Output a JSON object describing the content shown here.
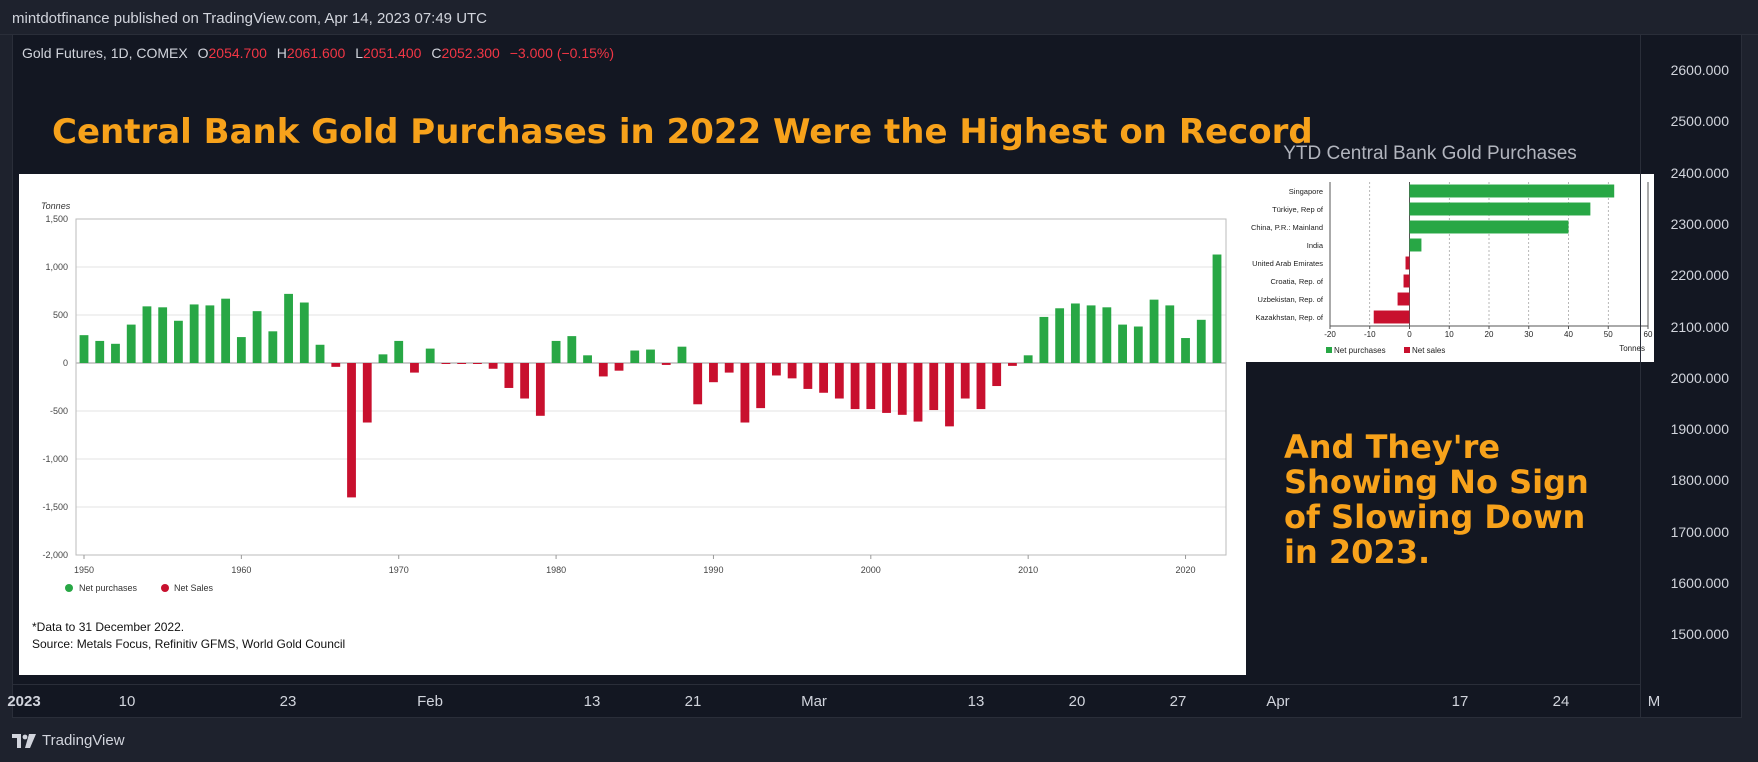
{
  "header": {
    "publisher": "mintdotfinance published on TradingView.com, Apr 14, 2023 07:49 UTC"
  },
  "legend": {
    "symbol": "Gold Futures, 1D, COMEX",
    "open_label": "O",
    "open": "2054.700",
    "high_label": "H",
    "high": "2061.600",
    "low_label": "L",
    "low": "2051.400",
    "close_label": "C",
    "close": "2052.300",
    "change": "−3.000 (−0.15%)"
  },
  "headline": "Central Bank Gold Purchases in 2022 Were the Highest on Record",
  "side_text": "And They're Showing No Sign of Slowing Down in 2023.",
  "price_scale": [
    "2600.000",
    "2500.000",
    "2400.000",
    "2300.000",
    "2200.000",
    "2100.000",
    "2000.000",
    "1900.000",
    "1800.000",
    "1700.000",
    "1600.000",
    "1500.000"
  ],
  "time_axis": [
    "2023",
    "10",
    "23",
    "Feb",
    "13",
    "21",
    "Mar",
    "13",
    "20",
    "27",
    "Apr",
    "17",
    "24",
    "M"
  ],
  "footer": {
    "brand": "TradingView"
  },
  "colors": {
    "positive": "#28a745",
    "negative": "#c8102e",
    "headline": "#f7a21b",
    "red_values": "#f23645"
  },
  "chart_data": [
    {
      "type": "bar",
      "title": "",
      "ylabel": "Tonnes",
      "ylim": [
        -2000,
        1500
      ],
      "yticks": [
        "1,500",
        "1,000",
        "500",
        "0",
        "-500",
        "-1,000",
        "-1,500",
        "-2,000"
      ],
      "xticks": [
        "1950",
        "1960",
        "1970",
        "1980",
        "1990",
        "2000",
        "2010",
        "2020"
      ],
      "x": [
        1950,
        1951,
        1952,
        1953,
        1954,
        1955,
        1956,
        1957,
        1958,
        1959,
        1960,
        1961,
        1962,
        1963,
        1964,
        1965,
        1966,
        1967,
        1968,
        1969,
        1970,
        1971,
        1972,
        1973,
        1974,
        1975,
        1976,
        1977,
        1978,
        1979,
        1980,
        1981,
        1982,
        1983,
        1984,
        1985,
        1986,
        1987,
        1988,
        1989,
        1990,
        1991,
        1992,
        1993,
        1994,
        1995,
        1996,
        1997,
        1998,
        1999,
        2000,
        2001,
        2002,
        2003,
        2004,
        2005,
        2006,
        2007,
        2008,
        2009,
        2010,
        2011,
        2012,
        2013,
        2014,
        2015,
        2016,
        2017,
        2018,
        2019,
        2020,
        2021,
        2022
      ],
      "values": [
        290,
        230,
        200,
        400,
        590,
        580,
        440,
        610,
        600,
        670,
        270,
        540,
        330,
        720,
        630,
        190,
        -40,
        -1400,
        -620,
        90,
        230,
        -100,
        150,
        -10,
        -10,
        -10,
        -60,
        -260,
        -370,
        -550,
        230,
        280,
        80,
        -140,
        -80,
        130,
        140,
        -20,
        170,
        -430,
        -200,
        -100,
        -620,
        -470,
        -130,
        -160,
        -270,
        -310,
        -370,
        -480,
        -480,
        -520,
        -540,
        -610,
        -490,
        -660,
        -370,
        -480,
        -240,
        -30,
        80,
        480,
        570,
        620,
        600,
        580,
        400,
        380,
        660,
        600,
        260,
        450,
        1130
      ],
      "legend": [
        {
          "label": "Net purchases",
          "color": "#28a745"
        },
        {
          "label": "Net Sales",
          "color": "#c8102e"
        }
      ],
      "footnote": "*Data to 31 December 2022.",
      "source": "Source: Metals Focus, Refinitiv GFMS, World Gold Council"
    },
    {
      "type": "bar",
      "orientation": "horizontal",
      "title": "YTD Central Bank Gold Purchases",
      "xlabel": "Tonnes",
      "xlim": [
        -20,
        60
      ],
      "xticks": [
        "-20",
        "-10",
        "0",
        "10",
        "20",
        "30",
        "40",
        "50",
        "60"
      ],
      "categories": [
        "Singapore",
        "Türkiye, Rep of",
        "China, P.R.: Mainland",
        "India",
        "United Arab Emirates",
        "Croatia, Rep. of",
        "Uzbekistan, Rep. of",
        "Kazakhstan, Rep. of"
      ],
      "values": [
        51.5,
        45.5,
        40,
        3,
        -1,
        -1.5,
        -3,
        -9
      ],
      "legend": [
        {
          "label": "Net purchases",
          "color": "#28a745"
        },
        {
          "label": "Net sales",
          "color": "#c8102e"
        }
      ]
    }
  ]
}
